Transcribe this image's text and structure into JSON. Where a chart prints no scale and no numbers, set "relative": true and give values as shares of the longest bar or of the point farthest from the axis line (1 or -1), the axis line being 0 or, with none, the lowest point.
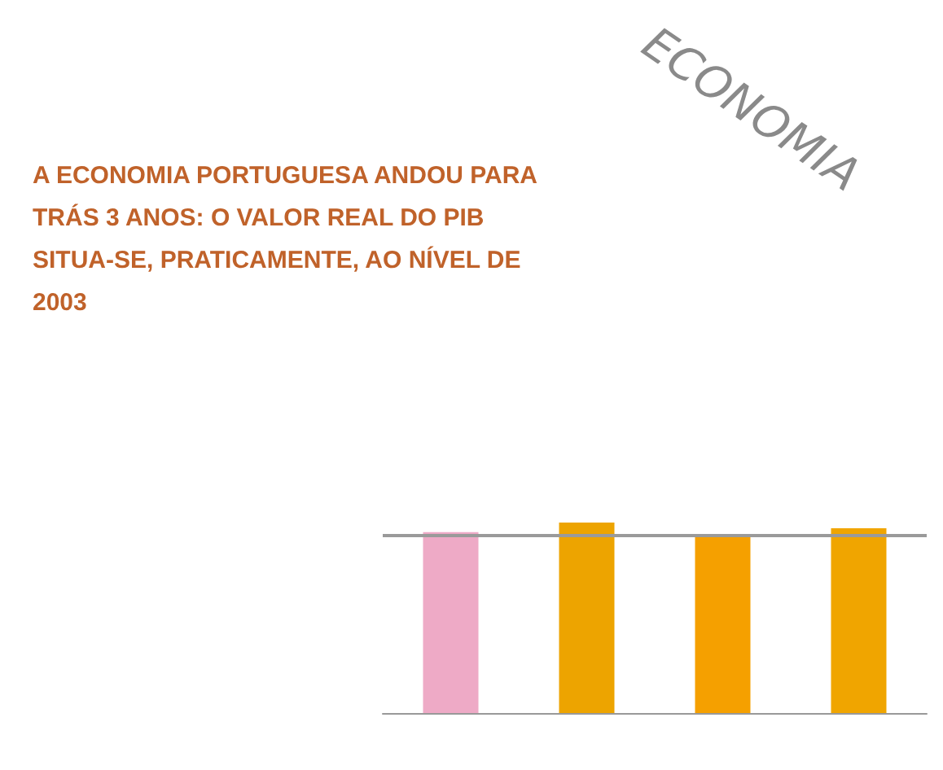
{
  "chart_data": {
    "type": "bar",
    "title": "ECONOMIA",
    "subtitle": "A ECONOMIA PORTUGUESA ANDOU PARA TRÁS 3 ANOS: O VALOR REAL DO PIB SITUA-SE, PRATICAMENTE, AO NÍVEL DE 2003",
    "categories": [
      null,
      null,
      null,
      null
    ],
    "values": [
      0.95,
      1,
      0.93,
      0.97
    ],
    "colors": [
      "#eeaac6",
      "#eda400",
      "#f5a000",
      "#f0a500"
    ],
    "relative": true,
    "ref_lines": [
      {
        "axis": "y",
        "value": 0.93,
        "color": "#9a9a9a"
      }
    ],
    "data_labels": false
  }
}
